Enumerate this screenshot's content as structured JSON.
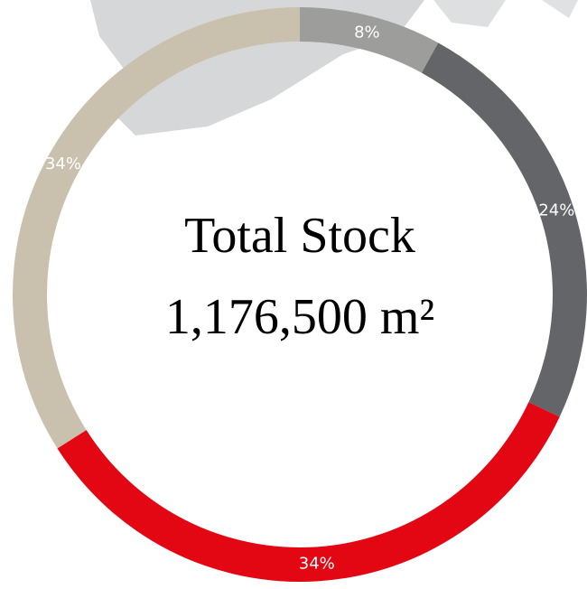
{
  "chart_data": {
    "type": "donut",
    "categories": [
      null,
      null,
      null,
      null
    ],
    "values": [
      8,
      24,
      34,
      34
    ],
    "value_labels": [
      "8%",
      "24%",
      "34%",
      "34%"
    ],
    "colors": [
      "#9d9d9c",
      "#646569",
      "#e30613",
      "#c9c0ae"
    ],
    "annotations": [
      "Total Stock",
      "1,176,500 m²"
    ]
  }
}
